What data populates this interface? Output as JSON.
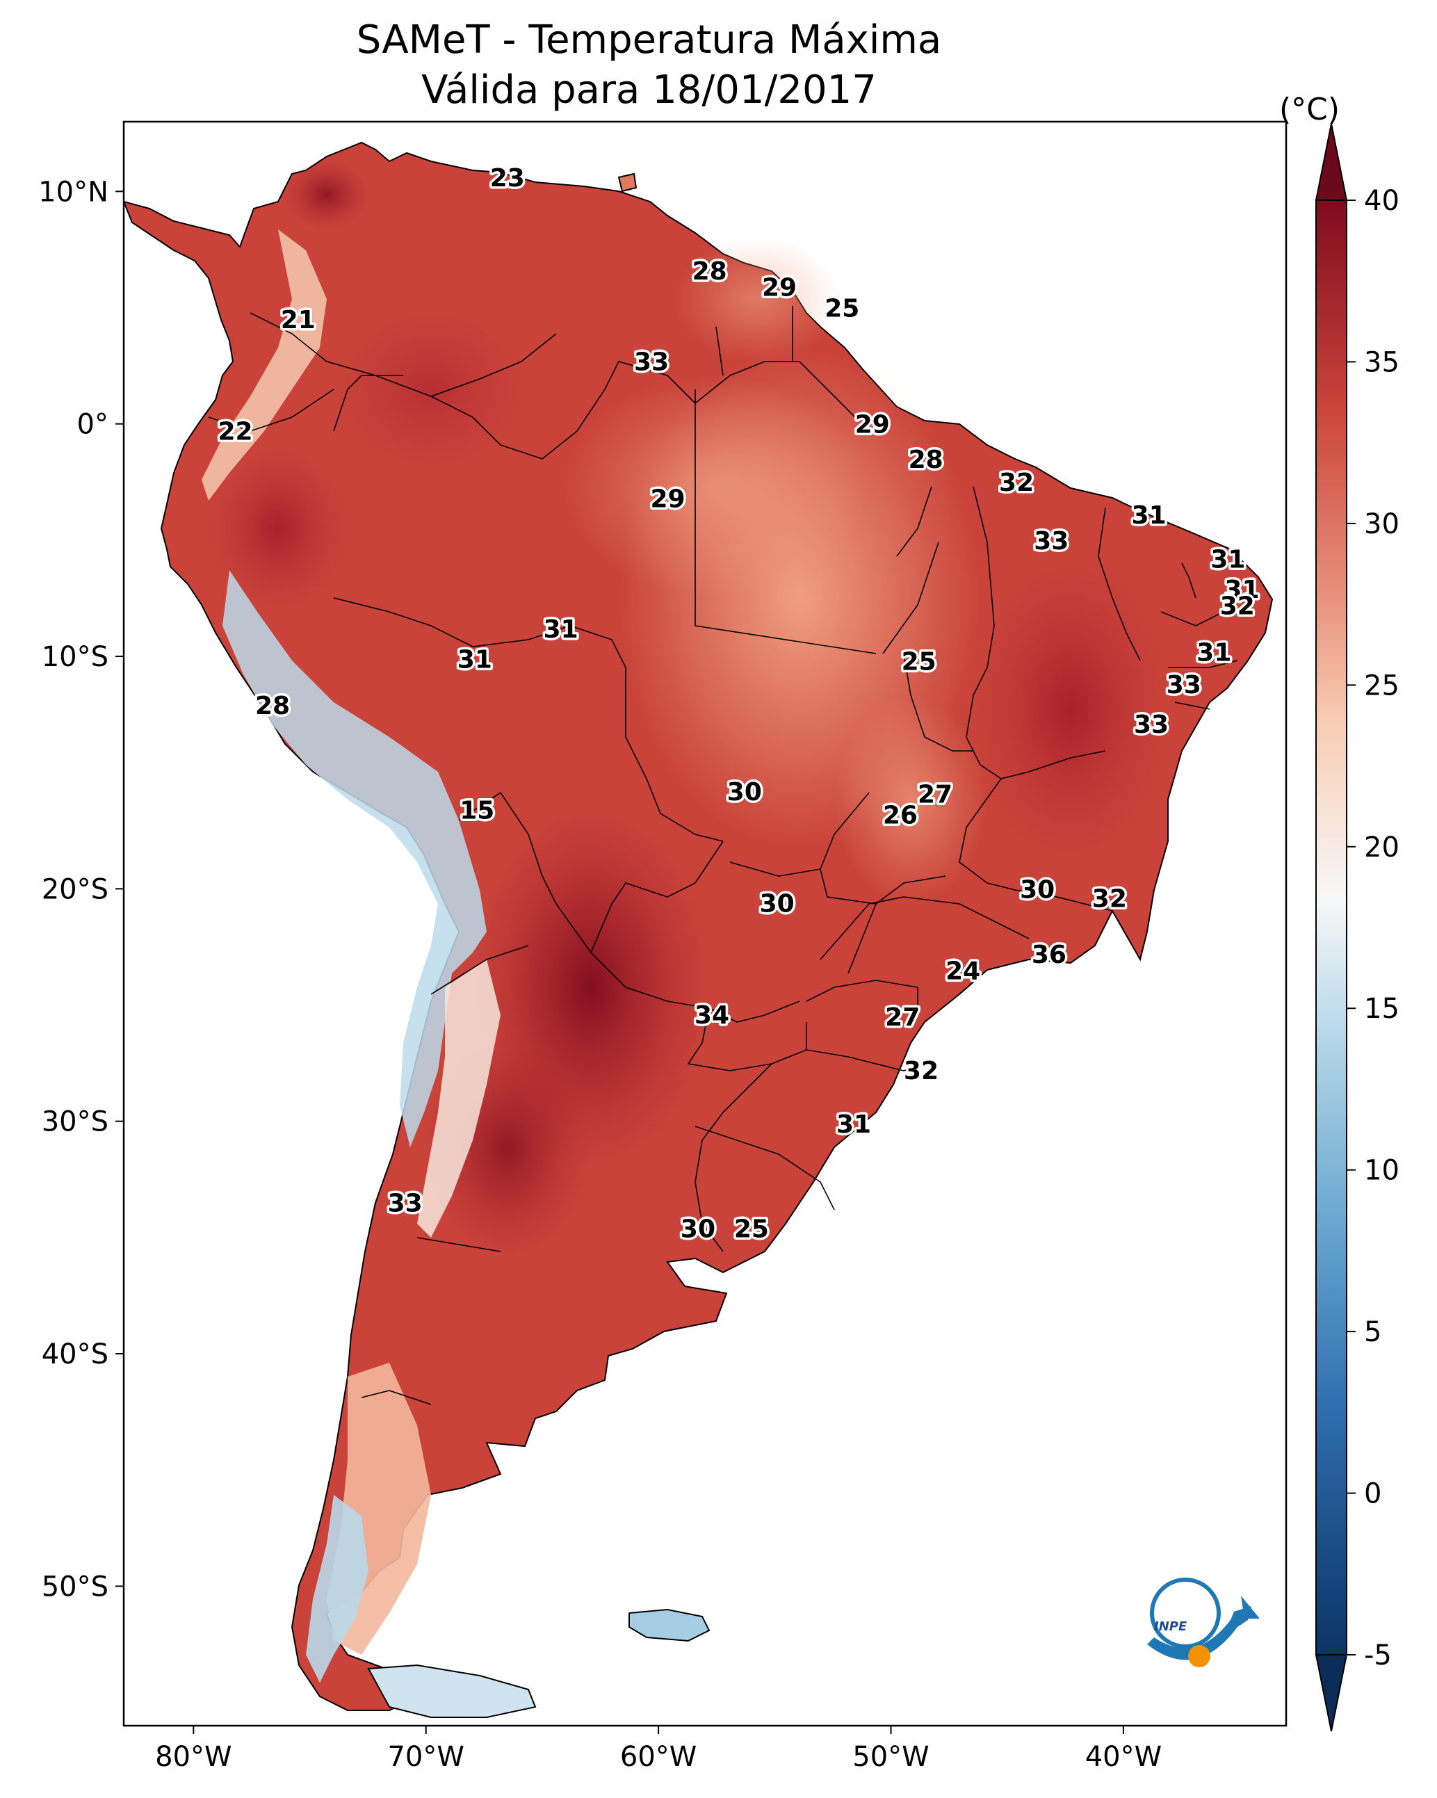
{
  "title": "SAMeT - Temperatura Máxima",
  "subtitle": "Válida para 18/01/2017",
  "colorbar": {
    "unit": "(°C)",
    "ticks": [
      "-5",
      "0",
      "5",
      "10",
      "15",
      "20",
      "25",
      "30",
      "35",
      "40"
    ],
    "tick_values": [
      -5,
      0,
      5,
      10,
      15,
      20,
      25,
      30,
      35,
      40
    ],
    "range": [
      -5,
      40
    ],
    "colors": {
      "cold_end": "#0a3466",
      "blue": "#3c88c0",
      "light_blue": "#a6cde4",
      "white": "#f7f7f7",
      "peach": "#f7c4a7",
      "salmon": "#e07a5f",
      "red": "#c23a33",
      "dark_red": "#7e0b1e"
    }
  },
  "axes": {
    "lon_labels": [
      "80°W",
      "70°W",
      "60°W",
      "50°W",
      "40°W"
    ],
    "lon_values": [
      -80,
      -70,
      -60,
      -50,
      -40
    ],
    "lat_labels": [
      "10°N",
      "0°",
      "10°S",
      "20°S",
      "30°S",
      "40°S",
      "50°S"
    ],
    "lat_values": [
      10,
      0,
      -10,
      -20,
      -30,
      -40,
      -50
    ],
    "lon_range": [
      -83,
      -33
    ],
    "lat_range": [
      -56,
      13
    ]
  },
  "contour_labels": [
    {
      "value": "23",
      "lon": -66.5,
      "lat": 10.6
    },
    {
      "value": "21",
      "lon": -75.5,
      "lat": 4.5
    },
    {
      "value": "28",
      "lon": -57.8,
      "lat": 6.6
    },
    {
      "value": "29",
      "lon": -54.8,
      "lat": 5.9
    },
    {
      "value": "25",
      "lon": -52.1,
      "lat": 5.0
    },
    {
      "value": "33",
      "lon": -60.3,
      "lat": 2.7
    },
    {
      "value": "22",
      "lon": -78.2,
      "lat": -0.3
    },
    {
      "value": "29",
      "lon": -50.8,
      "lat": 0.0
    },
    {
      "value": "28",
      "lon": -48.5,
      "lat": -1.5
    },
    {
      "value": "32",
      "lon": -44.6,
      "lat": -2.5
    },
    {
      "value": "31",
      "lon": -38.9,
      "lat": -3.9
    },
    {
      "value": "29",
      "lon": -59.6,
      "lat": -3.2
    },
    {
      "value": "33",
      "lon": -43.1,
      "lat": -5.0
    },
    {
      "value": "31",
      "lon": -35.5,
      "lat": -5.8
    },
    {
      "value": "31",
      "lon": -34.9,
      "lat": -7.1
    },
    {
      "value": "32",
      "lon": -35.1,
      "lat": -7.8
    },
    {
      "value": "31",
      "lon": -64.2,
      "lat": -8.8
    },
    {
      "value": "31",
      "lon": -67.9,
      "lat": -10.1
    },
    {
      "value": "31",
      "lon": -36.1,
      "lat": -9.8
    },
    {
      "value": "25",
      "lon": -48.8,
      "lat": -10.2
    },
    {
      "value": "33",
      "lon": -37.4,
      "lat": -11.2
    },
    {
      "value": "28",
      "lon": -76.6,
      "lat": -12.1
    },
    {
      "value": "33",
      "lon": -38.8,
      "lat": -12.9
    },
    {
      "value": "27",
      "lon": -48.1,
      "lat": -15.9
    },
    {
      "value": "30",
      "lon": -56.3,
      "lat": -15.8
    },
    {
      "value": "26",
      "lon": -49.6,
      "lat": -16.8
    },
    {
      "value": "15",
      "lon": -67.8,
      "lat": -16.6
    },
    {
      "value": "30",
      "lon": -43.7,
      "lat": -20.0
    },
    {
      "value": "32",
      "lon": -40.6,
      "lat": -20.4
    },
    {
      "value": "30",
      "lon": -54.9,
      "lat": -20.6
    },
    {
      "value": "36",
      "lon": -43.2,
      "lat": -22.8
    },
    {
      "value": "24",
      "lon": -46.9,
      "lat": -23.5
    },
    {
      "value": "34",
      "lon": -57.7,
      "lat": -25.4
    },
    {
      "value": "27",
      "lon": -49.5,
      "lat": -25.5
    },
    {
      "value": "32",
      "lon": -48.7,
      "lat": -27.8
    },
    {
      "value": "31",
      "lon": -51.6,
      "lat": -30.1
    },
    {
      "value": "33",
      "lon": -70.9,
      "lat": -33.5
    },
    {
      "value": "30",
      "lon": -58.3,
      "lat": -34.6
    },
    {
      "value": "25",
      "lon": -56.0,
      "lat": -34.6
    }
  ],
  "logo": {
    "text": "INPE"
  }
}
